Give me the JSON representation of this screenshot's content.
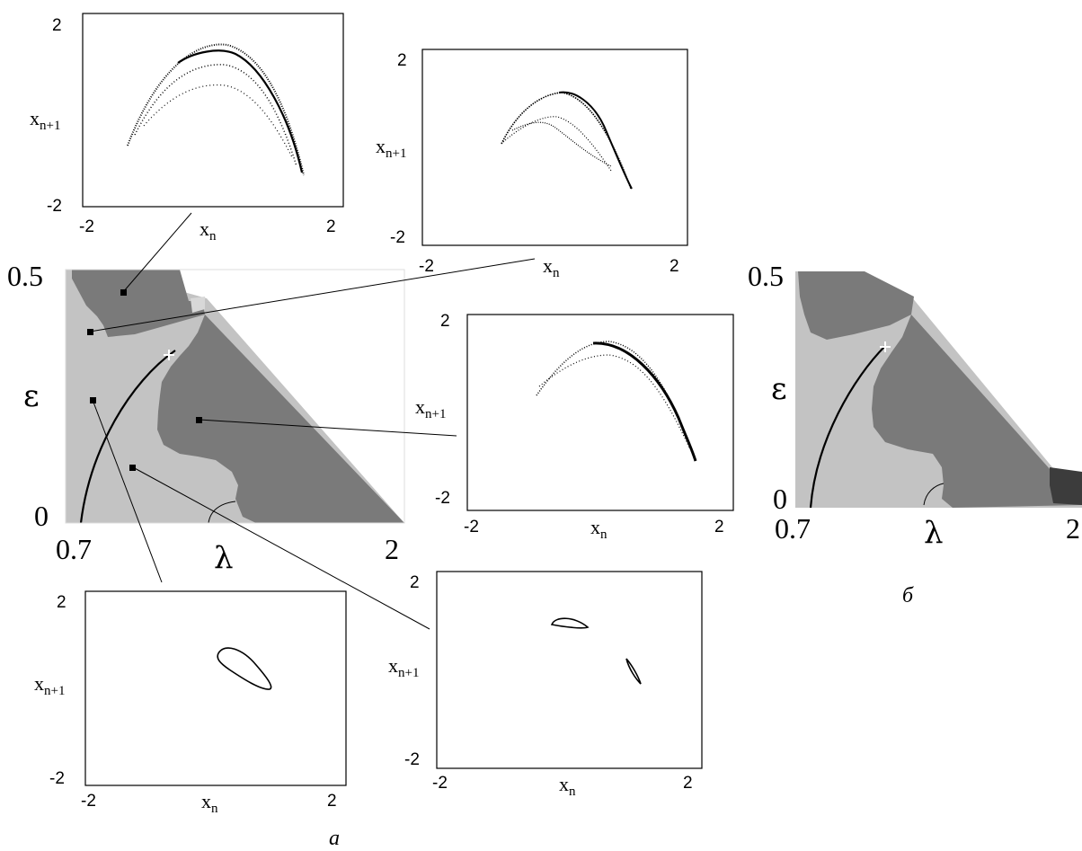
{
  "colors": {
    "chaos_dark": "#7a7a7a",
    "light": "#c3c3c3",
    "very_dark": "#3c3c3c",
    "markers": "#000000",
    "frame": "#000000"
  },
  "main_map": {
    "y_top": "0.5",
    "y_bottom": "0",
    "x_left": "0.7",
    "x_right": "2",
    "y_label": "ε",
    "x_label": "λ"
  },
  "right_map": {
    "y_top": "0.5",
    "y_bottom": "0",
    "x_left": "0.7",
    "x_right": "2",
    "y_label": "ε",
    "x_label": "λ",
    "caption": "б"
  },
  "caption_a": "а",
  "insets": [
    {
      "id": "inset-top-left",
      "y_top": "2",
      "y_bottom": "-2",
      "x_left": "-2",
      "x_right": "2",
      "y_main": "x",
      "y_sub": "n+1",
      "x_main": "x",
      "x_sub": "n",
      "kind": "chaotic-wide"
    },
    {
      "id": "inset-top-center",
      "y_top": "2",
      "y_bottom": "-2",
      "x_left": "-2",
      "x_right": "2",
      "y_main": "x",
      "y_sub": "n+1",
      "x_main": "x",
      "x_sub": "n",
      "kind": "chaotic-double"
    },
    {
      "id": "inset-middle-right",
      "y_top": "2",
      "y_bottom": "-2",
      "x_left": "-2",
      "x_right": "2",
      "y_main": "x",
      "y_sub": "n+1",
      "x_main": "x",
      "x_sub": "n",
      "kind": "chaotic-thin"
    },
    {
      "id": "inset-bottom-left",
      "y_top": "2",
      "y_bottom": "-2",
      "x_left": "-2",
      "x_right": "2",
      "y_main": "x",
      "y_sub": "n+1",
      "x_main": "x",
      "x_sub": "n",
      "kind": "torus"
    },
    {
      "id": "inset-bottom-center",
      "y_top": "2",
      "y_bottom": "-2",
      "x_left": "-2",
      "x_right": "2",
      "y_main": "x",
      "y_sub": "n+1",
      "x_main": "x",
      "x_sub": "n",
      "kind": "two-loops"
    }
  ]
}
